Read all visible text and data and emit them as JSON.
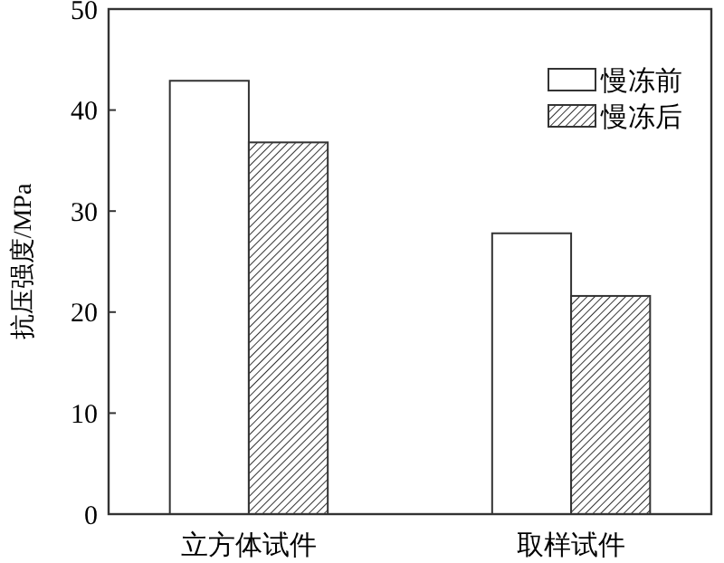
{
  "chart_data": {
    "type": "bar",
    "ylabel": "抗压强度/MPa",
    "categories": [
      "立方体试件",
      "取样试件"
    ],
    "series": [
      {
        "name": "慢冻前",
        "color": "#ffffff",
        "values": [
          42.9,
          27.8
        ]
      },
      {
        "name": "慢冻后",
        "color": "#333333",
        "values": [
          36.8,
          21.6
        ]
      }
    ],
    "ylim": [
      0,
      50
    ],
    "yticks": [
      0,
      10,
      20,
      30,
      40,
      50
    ],
    "legend": "top right",
    "grid": false
  }
}
